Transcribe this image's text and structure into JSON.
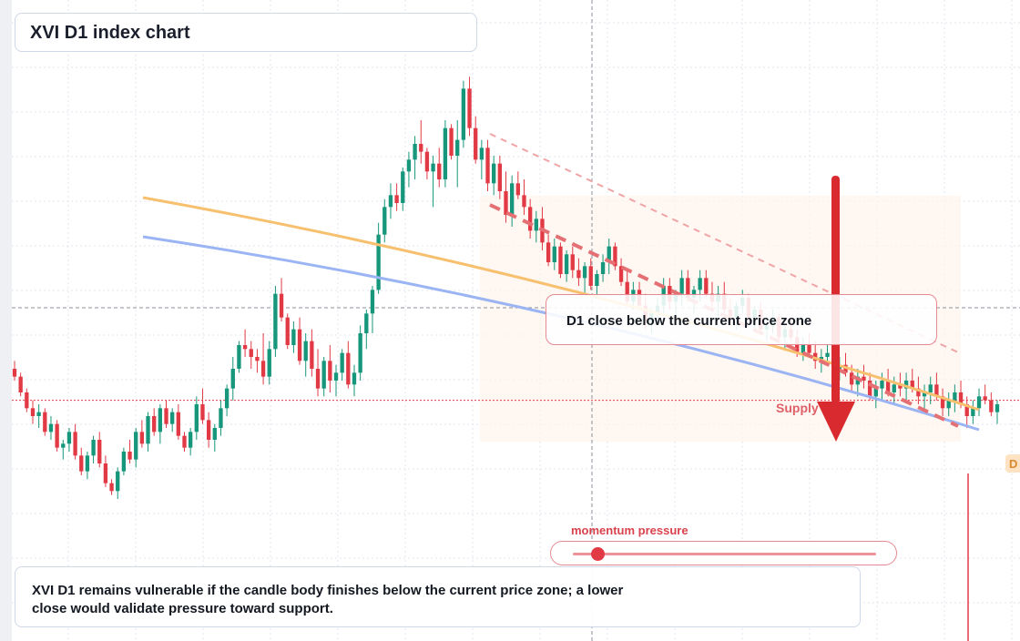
{
  "title": "XVI D1 index chart",
  "callout": {
    "text": "D1 close below the current price zone"
  },
  "zone_label": "Supply zone",
  "price_tag": "D",
  "momentum": {
    "label": "momentum pressure",
    "level": 0.08
  },
  "summary": "XVI D1 remains vulnerable if the candle body finishes below the current price zone; a lower close would validate pressure toward support.",
  "colors": {
    "up": "#16967a",
    "down": "#e23a45",
    "ma_fast": "#f7c06e",
    "ma_slow": "#9bb4f3",
    "arrow": "#d92b2f",
    "zone": "#fdf3ec",
    "grid": "#e3e6ec"
  },
  "chart_data": {
    "type": "candlestick",
    "timeframe": "D1",
    "ylim": [
      0,
      100
    ],
    "current_price": 37,
    "candles": [
      [
        45,
        47,
        42,
        43
      ],
      [
        43,
        44,
        38,
        39
      ],
      [
        39,
        40,
        34,
        35
      ],
      [
        35,
        37,
        31,
        33
      ],
      [
        33,
        36,
        30,
        34
      ],
      [
        34,
        35,
        28,
        29
      ],
      [
        29,
        33,
        27,
        31
      ],
      [
        31,
        32,
        24,
        25
      ],
      [
        25,
        27,
        22,
        26
      ],
      [
        26,
        30,
        24,
        29
      ],
      [
        29,
        31,
        22,
        23
      ],
      [
        23,
        25,
        18,
        19
      ],
      [
        19,
        24,
        17,
        23
      ],
      [
        23,
        28,
        21,
        27
      ],
      [
        27,
        29,
        20,
        21
      ],
      [
        21,
        23,
        15,
        16
      ],
      [
        16,
        17,
        13,
        14
      ],
      [
        14,
        20,
        12,
        19
      ],
      [
        19,
        25,
        18,
        24
      ],
      [
        24,
        27,
        21,
        22
      ],
      [
        22,
        30,
        20,
        29
      ],
      [
        29,
        32,
        25,
        26
      ],
      [
        26,
        34,
        24,
        33
      ],
      [
        33,
        35,
        28,
        29
      ],
      [
        29,
        36,
        26,
        35
      ],
      [
        35,
        37,
        30,
        31
      ],
      [
        31,
        35,
        29,
        34
      ],
      [
        34,
        36,
        27,
        28
      ],
      [
        28,
        29,
        24,
        25
      ],
      [
        25,
        30,
        23,
        29
      ],
      [
        29,
        38,
        27,
        36
      ],
      [
        36,
        40,
        31,
        32
      ],
      [
        32,
        34,
        25,
        27
      ],
      [
        27,
        31,
        24,
        30
      ],
      [
        30,
        37,
        28,
        35
      ],
      [
        35,
        41,
        33,
        40
      ],
      [
        40,
        48,
        37,
        45
      ],
      [
        45,
        52,
        44,
        51
      ],
      [
        51,
        55,
        48,
        50
      ],
      [
        50,
        52,
        45,
        48
      ],
      [
        48,
        50,
        44,
        47
      ],
      [
        47,
        54,
        41,
        43
      ],
      [
        43,
        52,
        41,
        50
      ],
      [
        50,
        66,
        48,
        64
      ],
      [
        64,
        68,
        57,
        58
      ],
      [
        58,
        59,
        50,
        51
      ],
      [
        51,
        57,
        49,
        55
      ],
      [
        55,
        58,
        46,
        47
      ],
      [
        47,
        54,
        43,
        52
      ],
      [
        52,
        55,
        43,
        45
      ],
      [
        45,
        50,
        38,
        40
      ],
      [
        40,
        48,
        38,
        47
      ],
      [
        47,
        51,
        39,
        42
      ],
      [
        42,
        46,
        38,
        44
      ],
      [
        44,
        50,
        42,
        49
      ],
      [
        49,
        52,
        40,
        41
      ],
      [
        41,
        46,
        38,
        44
      ],
      [
        44,
        56,
        42,
        54
      ],
      [
        54,
        60,
        50,
        59
      ],
      [
        59,
        66,
        54,
        65
      ],
      [
        65,
        82,
        64,
        79
      ],
      [
        79,
        88,
        77,
        86
      ],
      [
        86,
        92,
        83,
        89
      ],
      [
        89,
        92,
        85,
        87
      ],
      [
        87,
        96,
        85,
        95
      ],
      [
        95,
        100,
        91,
        98
      ],
      [
        98,
        104,
        93,
        102
      ],
      [
        102,
        108,
        97,
        100
      ],
      [
        100,
        101,
        93,
        95
      ],
      [
        95,
        99,
        86,
        97
      ],
      [
        97,
        101,
        91,
        93
      ],
      [
        93,
        108,
        91,
        106
      ],
      [
        106,
        107,
        98,
        99
      ],
      [
        99,
        108,
        91,
        103
      ],
      [
        103,
        118,
        101,
        116
      ],
      [
        116,
        119,
        104,
        106
      ],
      [
        106,
        109,
        97,
        98
      ],
      [
        98,
        103,
        93,
        101
      ],
      [
        101,
        103,
        90,
        92
      ],
      [
        92,
        99,
        89,
        97
      ],
      [
        97,
        99,
        88,
        90
      ],
      [
        90,
        95,
        82,
        84
      ],
      [
        84,
        94,
        81,
        92
      ],
      [
        92,
        95,
        88,
        89
      ],
      [
        89,
        93,
        84,
        86
      ],
      [
        86,
        88,
        78,
        80
      ],
      [
        80,
        85,
        77,
        83
      ],
      [
        83,
        86,
        75,
        77
      ],
      [
        77,
        79,
        71,
        72
      ],
      [
        72,
        78,
        70,
        76
      ],
      [
        76,
        77,
        68,
        69
      ],
      [
        69,
        75,
        67,
        74
      ],
      [
        74,
        76,
        68,
        70
      ],
      [
        70,
        73,
        66,
        68
      ],
      [
        68,
        72,
        64,
        71
      ],
      [
        71,
        73,
        65,
        66
      ],
      [
        66,
        70,
        63,
        69
      ],
      [
        69,
        74,
        67,
        72
      ],
      [
        72,
        78,
        69,
        76
      ],
      [
        76,
        77,
        70,
        71
      ],
      [
        71,
        73,
        66,
        67
      ],
      [
        67,
        70,
        61,
        62
      ],
      [
        62,
        67,
        60,
        65
      ],
      [
        65,
        67,
        60,
        61
      ],
      [
        61,
        64,
        55,
        57
      ],
      [
        57,
        60,
        54,
        59
      ],
      [
        59,
        63,
        56,
        61
      ],
      [
        61,
        68,
        59,
        66
      ],
      [
        66,
        68,
        60,
        62
      ],
      [
        62,
        65,
        58,
        64
      ],
      [
        64,
        70,
        61,
        68
      ],
      [
        68,
        70,
        62,
        63
      ],
      [
        63,
        66,
        59,
        65
      ],
      [
        65,
        70,
        62,
        68
      ],
      [
        68,
        70,
        63,
        64
      ],
      [
        64,
        67,
        60,
        62
      ],
      [
        62,
        66,
        58,
        64
      ],
      [
        64,
        67,
        59,
        60
      ],
      [
        60,
        63,
        56,
        58
      ],
      [
        58,
        62,
        55,
        61
      ],
      [
        61,
        65,
        59,
        63
      ],
      [
        63,
        64,
        57,
        58
      ],
      [
        58,
        61,
        55,
        60
      ],
      [
        60,
        62,
        54,
        55
      ],
      [
        55,
        58,
        52,
        56
      ],
      [
        56,
        60,
        54,
        58
      ],
      [
        58,
        59,
        52,
        53
      ],
      [
        53,
        56,
        50,
        55
      ],
      [
        55,
        58,
        52,
        53
      ],
      [
        53,
        55,
        48,
        49
      ],
      [
        49,
        53,
        47,
        51
      ],
      [
        51,
        54,
        48,
        49
      ],
      [
        49,
        52,
        45,
        47
      ],
      [
        47,
        50,
        44,
        48
      ],
      [
        48,
        51,
        46,
        49
      ],
      [
        49,
        50,
        43,
        45
      ],
      [
        45,
        48,
        42,
        46
      ],
      [
        46,
        49,
        43,
        44
      ],
      [
        44,
        46,
        39,
        41
      ],
      [
        41,
        45,
        38,
        43
      ],
      [
        43,
        46,
        40,
        42
      ],
      [
        42,
        44,
        37,
        38
      ],
      [
        38,
        42,
        35,
        40
      ],
      [
        40,
        44,
        37,
        42
      ],
      [
        42,
        45,
        38,
        39
      ],
      [
        39,
        43,
        36,
        41
      ],
      [
        41,
        44,
        38,
        40
      ],
      [
        40,
        44,
        37,
        42
      ],
      [
        42,
        45,
        39,
        40
      ],
      [
        40,
        43,
        36,
        38
      ],
      [
        38,
        41,
        34,
        39
      ],
      [
        39,
        43,
        36,
        41
      ],
      [
        41,
        44,
        37,
        38
      ],
      [
        38,
        40,
        33,
        35
      ],
      [
        35,
        39,
        33,
        37
      ],
      [
        37,
        41,
        34,
        39
      ],
      [
        39,
        42,
        35,
        36
      ],
      [
        36,
        38,
        30,
        33
      ],
      [
        33,
        37,
        31,
        35
      ],
      [
        35,
        40,
        33,
        38
      ],
      [
        38,
        41,
        36,
        37
      ],
      [
        37,
        39,
        33,
        34
      ],
      [
        34,
        37,
        31,
        36
      ]
    ]
  }
}
